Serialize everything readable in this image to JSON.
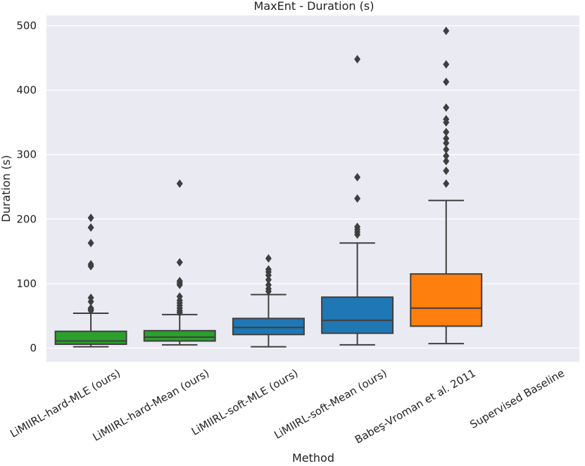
{
  "chart_data": {
    "type": "boxplot",
    "title": "MaxEnt - Duration (s)",
    "xlabel": "Method",
    "ylabel": "Duration (s)",
    "ylim": [
      -20,
      520
    ],
    "yticks": [
      0,
      100,
      200,
      300,
      400,
      500
    ],
    "grid": true,
    "categories": [
      "LiMIIRL-hard-MLE (ours)",
      "LiMIIRL-hard-Mean (ours)",
      "LiMIIRL-soft-MLE (ours)",
      "LiMIIRL-soft-Mean (ours)",
      "Babeş-Vroman et al. 2011",
      "Supervised Baseline"
    ],
    "boxes": [
      {
        "name": "LiMIIRL-hard-MLE (ours)",
        "color": "#2ca02c",
        "whislo": 2,
        "q1": 6,
        "median": 11,
        "q3": 26,
        "whishi": 54,
        "fliers": [
          58,
          60,
          62,
          72,
          78,
          127,
          130,
          163,
          187,
          202
        ]
      },
      {
        "name": "LiMIIRL-hard-Mean (ours)",
        "color": "#2ca02c",
        "whislo": 5,
        "q1": 11,
        "median": 17,
        "q3": 27,
        "whishi": 52,
        "fliers": [
          55,
          58,
          62,
          66,
          70,
          74,
          80,
          98,
          101,
          104,
          133,
          255
        ]
      },
      {
        "name": "LiMIIRL-soft-MLE (ours)",
        "color": "#1f77b4",
        "whislo": 2,
        "q1": 21,
        "median": 32,
        "q3": 46,
        "whishi": 83,
        "fliers": [
          88,
          92,
          98,
          106,
          113,
          118,
          122,
          139
        ]
      },
      {
        "name": "LiMIIRL-soft-Mean (ours)",
        "color": "#1f77b4",
        "whislo": 5,
        "q1": 23,
        "median": 43,
        "q3": 79,
        "whishi": 163,
        "fliers": [
          176,
          180,
          184,
          188,
          232,
          265,
          448
        ]
      },
      {
        "name": "Babeş-Vroman et al. 2011",
        "color": "#ff7f0e",
        "whislo": 7,
        "q1": 34,
        "median": 62,
        "q3": 115,
        "whishi": 229,
        "fliers": [
          255,
          275,
          290,
          298,
          308,
          318,
          325,
          335,
          350,
          355,
          373,
          413,
          440,
          492
        ]
      }
    ]
  }
}
